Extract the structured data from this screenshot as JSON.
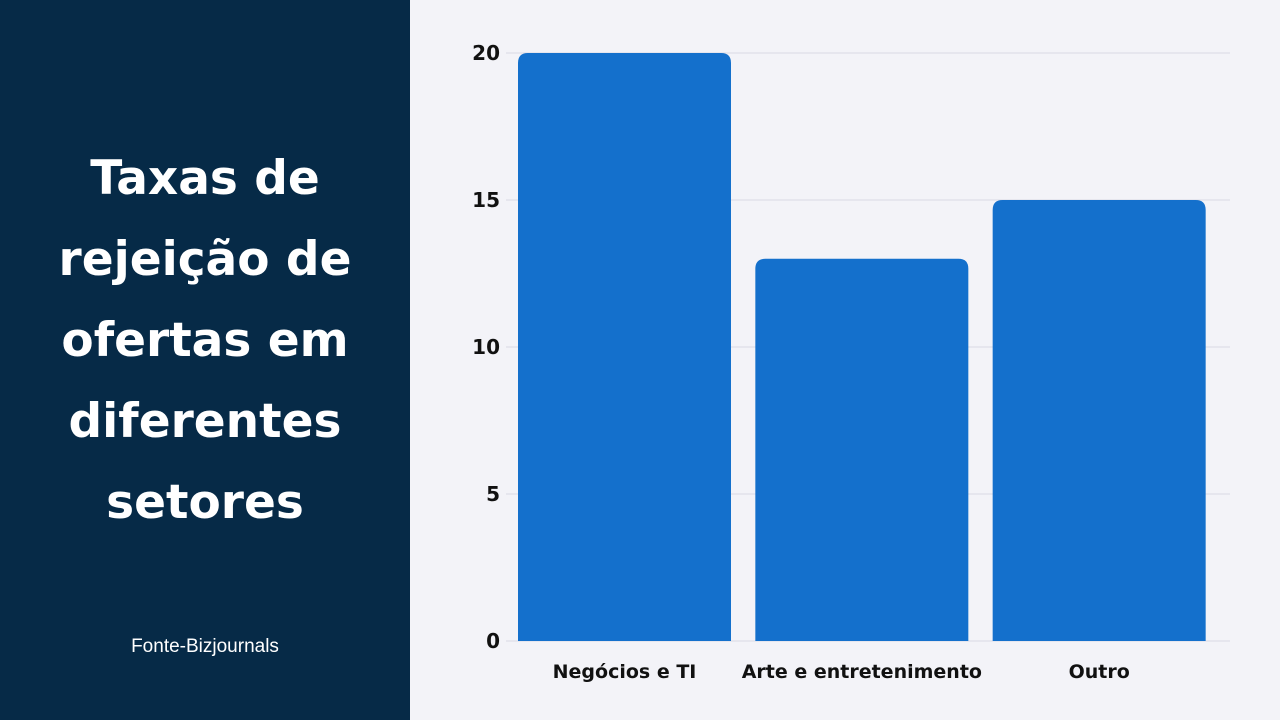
{
  "panel": {
    "title": "Taxas de\nrejeição de\nofertas em\ndiferentes\nsetores",
    "source": "Fonte-Bizjournals",
    "background": "#062a47"
  },
  "chart_data": {
    "type": "bar",
    "categories": [
      "Negócios e TI",
      "Arte e entretenimento",
      "Outro"
    ],
    "values": [
      20,
      13,
      15
    ],
    "ylim": [
      0,
      20
    ],
    "yticks": [
      0,
      5,
      10,
      15,
      20
    ],
    "grid": true,
    "bar_color": "#1470cc",
    "xlabel": "",
    "ylabel": ""
  }
}
